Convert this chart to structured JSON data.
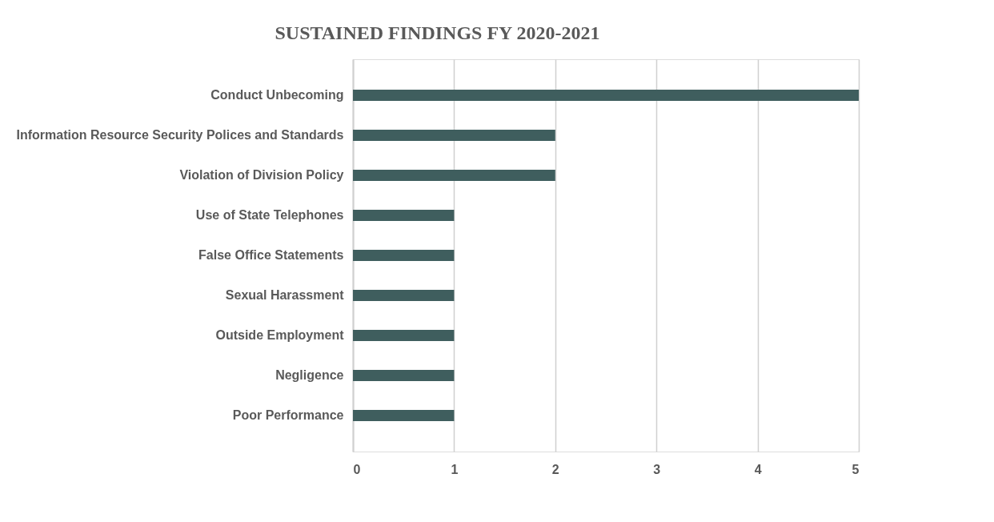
{
  "chart_data": {
    "type": "bar",
    "orientation": "horizontal",
    "title": "SUSTAINED FINDINGS FY 2020-2021",
    "categories": [
      "Conduct Unbecoming",
      "Information Resource Security Polices and Standards",
      "Violation of Division Policy",
      "Use of State Telephones",
      "False Office Statements",
      "Sexual Harassment",
      "Outside Employment",
      "Negligence",
      "Poor Performance"
    ],
    "values": [
      5,
      2,
      2,
      1,
      1,
      1,
      1,
      1,
      1
    ],
    "color": "#3f5e5e",
    "xlim": [
      0,
      5
    ],
    "xticks": [
      0,
      1,
      2,
      3,
      4,
      5
    ],
    "grid": "x"
  }
}
